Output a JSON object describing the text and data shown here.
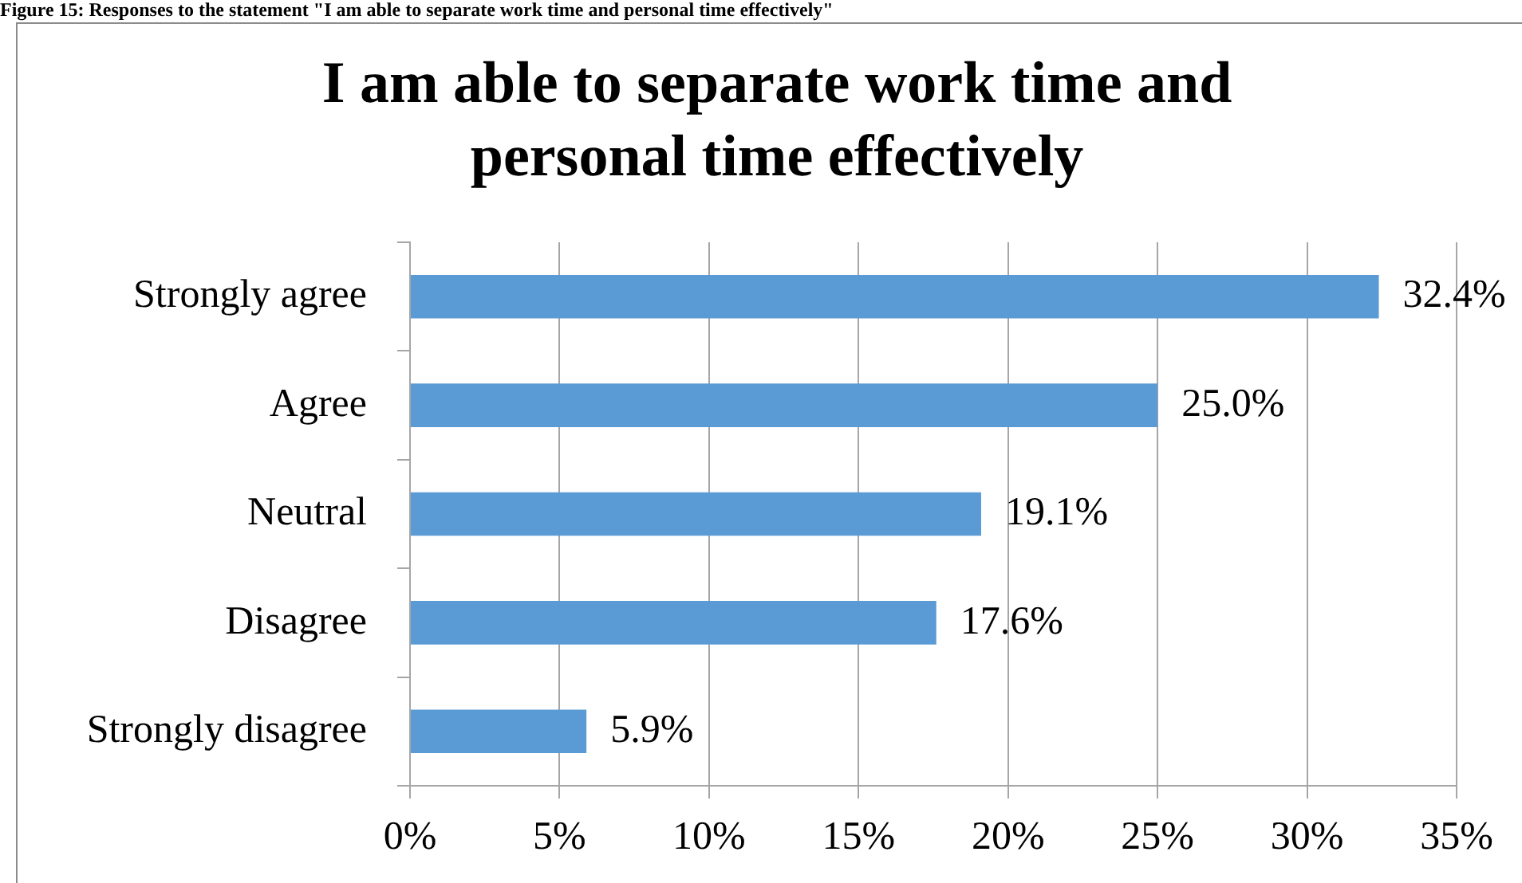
{
  "chart_data": {
    "type": "bar",
    "orientation": "horizontal",
    "title": "I am able to separate work time and personal time effectively",
    "annotations": [
      "Figure 15: Responses to the statement \"I am able to separate work time and personal time effectively\""
    ],
    "categories": [
      "Strongly agree",
      "Agree",
      "Neutral",
      "Disagree",
      "Strongly disagree"
    ],
    "values": [
      32.4,
      25.0,
      19.1,
      17.6,
      5.9
    ],
    "value_labels": [
      "32.4%",
      "25.0%",
      "19.1%",
      "17.6%",
      "5.9%"
    ],
    "color": "#5b9bd5",
    "xlim": [
      0,
      35
    ],
    "xticks": [
      {
        "value": 0,
        "label": "0%"
      },
      {
        "value": 5,
        "label": "5%"
      },
      {
        "value": 10,
        "label": "10%"
      },
      {
        "value": 15,
        "label": "15%"
      },
      {
        "value": 20,
        "label": "20%"
      },
      {
        "value": 25,
        "label": "25%"
      },
      {
        "value": 30,
        "label": "30%"
      },
      {
        "value": 35,
        "label": "35%"
      }
    ],
    "grid": "x"
  }
}
